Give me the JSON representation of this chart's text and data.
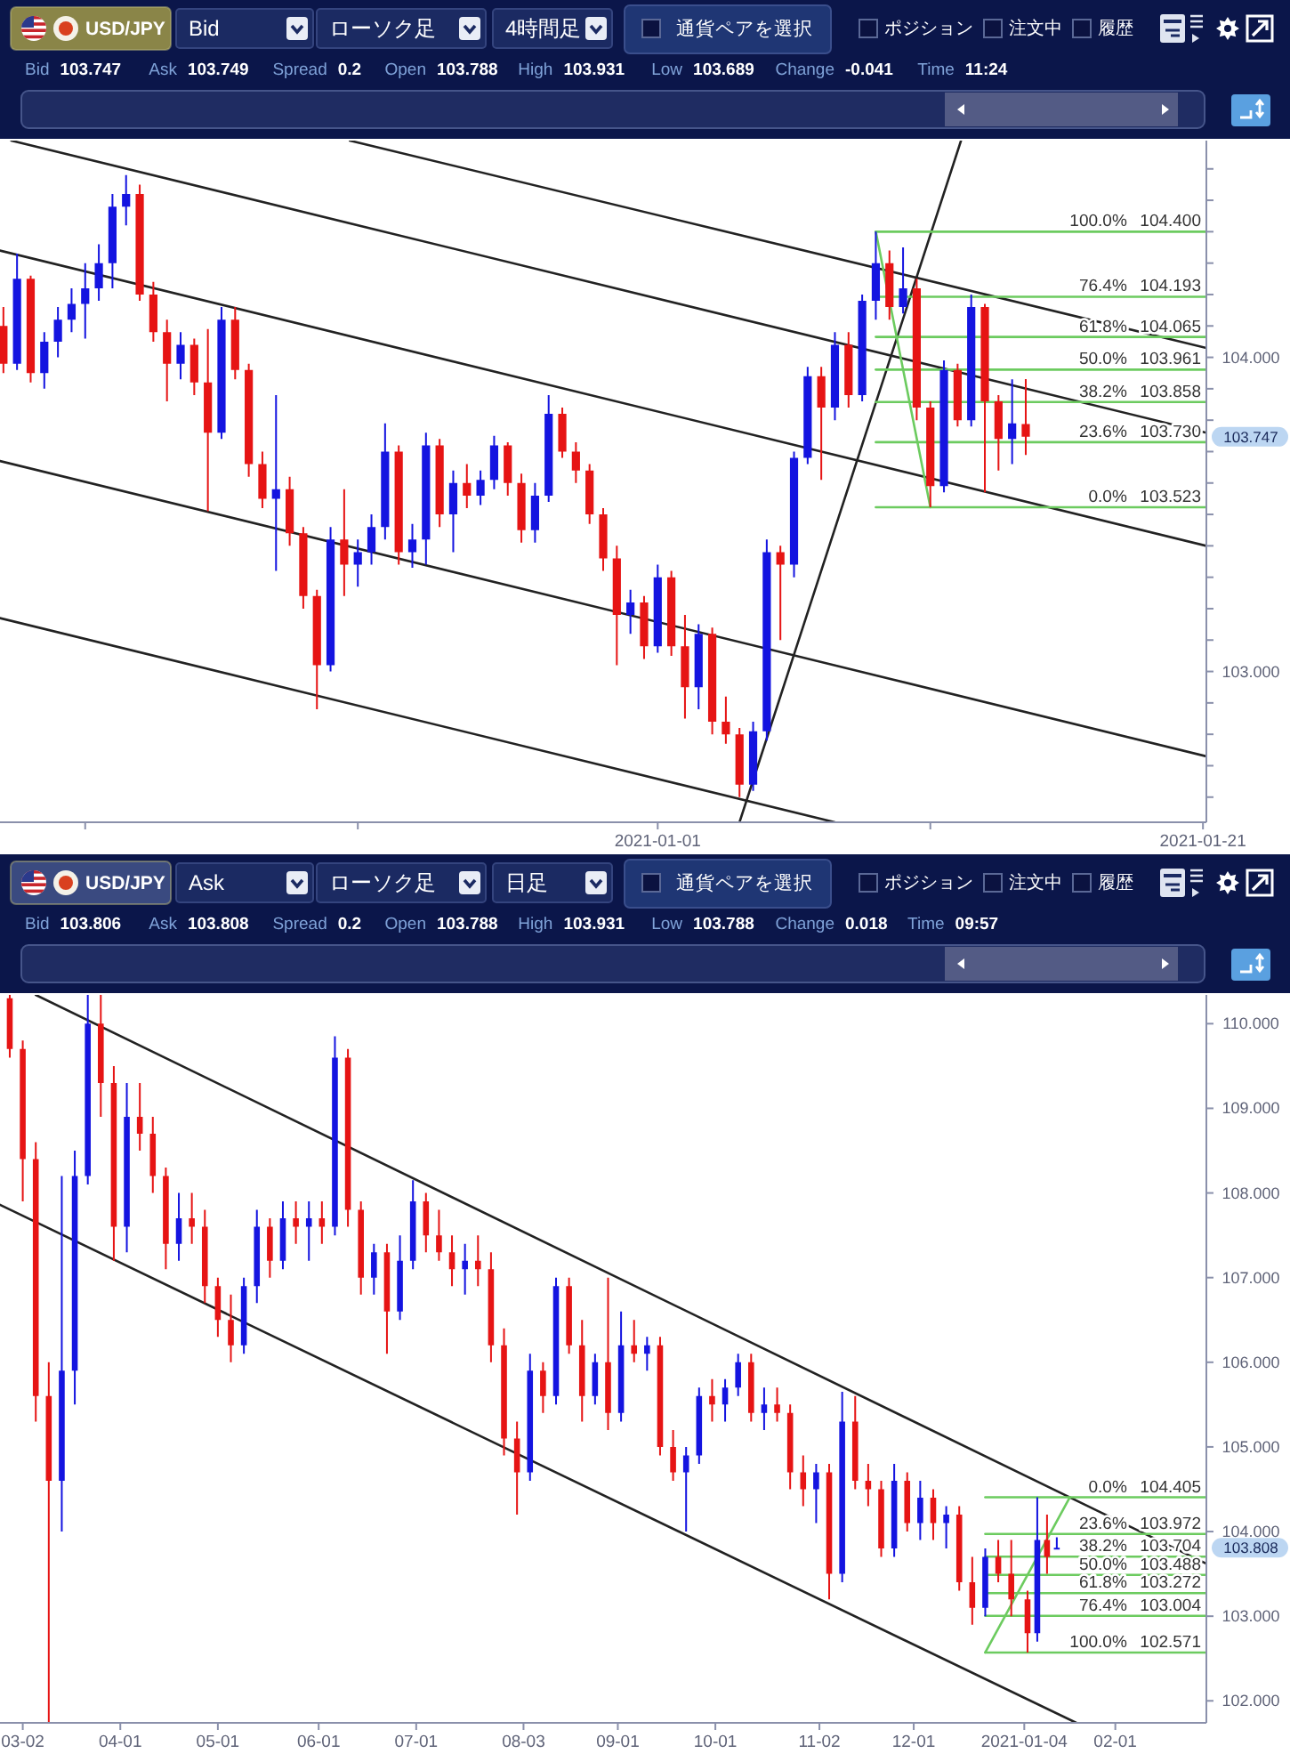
{
  "chart_data": [
    {
      "type": "candlestick",
      "title": "USD/JPY",
      "annotations": [
        "Bid",
        "ローソク足",
        "4時間足",
        "通貨ペアを選択",
        "ポジション",
        "注文中",
        "履歴",
        "Bid 103.747",
        "Ask 103.749",
        "Spread 0.2",
        "Open 103.788",
        "High 103.931",
        "Low 103.689",
        "Change -0.041",
        "Time 11:24",
        "103.747"
      ],
      "xlim": [
        "2020-12-07T21:00",
        "2021-01-21T03:00"
      ],
      "xticks": [
        {
          "value": "2020-12-11",
          "label": null
        },
        {
          "value": "2020-12-21",
          "label": null
        },
        "2021-01-01",
        {
          "value": "2021-01-11",
          "label": null
        },
        "2021-01-21"
      ],
      "ylim": [
        102.52,
        104.69
      ],
      "yticks": [
        {
          "value": 102.6,
          "label": null
        },
        {
          "value": 102.7,
          "label": null
        },
        {
          "value": 102.8,
          "label": null
        },
        {
          "value": 102.9,
          "label": null
        },
        {
          "value": 103,
          "label": "103.000"
        },
        {
          "value": 103.1,
          "label": null
        },
        {
          "value": 103.2,
          "label": null
        },
        {
          "value": 103.3,
          "label": null
        },
        {
          "value": 103.4,
          "label": null
        },
        {
          "value": 103.5,
          "label": null
        },
        {
          "value": 103.6,
          "label": null
        },
        {
          "value": 103.7,
          "label": null
        },
        {
          "value": 103.8,
          "label": null
        },
        {
          "value": 103.9,
          "label": null
        },
        {
          "value": 104,
          "label": "104.000"
        },
        {
          "value": 104.1,
          "label": null
        },
        {
          "value": 104.2,
          "label": null
        },
        {
          "value": 104.3,
          "label": null
        },
        {
          "value": 104.4,
          "label": null
        },
        {
          "value": 104.5,
          "label": null
        },
        {
          "value": 104.6,
          "label": null
        }
      ],
      "series": [
        {
          "x": [
            "2020-12-08T00:00",
            "2020-12-08T12:00",
            "2020-12-09T00:00",
            "2020-12-09T12:00",
            "2020-12-10T00:00",
            "2020-12-10T12:00",
            "2020-12-11T00:00",
            "2020-12-11T12:00",
            "2020-12-12T00:00",
            "2020-12-12T12:00",
            "2020-12-13T00:00",
            "2020-12-13T12:00",
            "2020-12-14T00:00",
            "2020-12-14T12:00",
            "2020-12-15T00:00",
            "2020-12-15T12:00",
            "2020-12-16T00:00",
            "2020-12-16T12:00",
            "2020-12-17T00:00",
            "2020-12-17T12:00",
            "2020-12-18T00:00",
            "2020-12-18T12:00",
            "2020-12-19T00:00",
            "2020-12-19T12:00",
            "2020-12-20T00:00",
            "2020-12-20T12:00",
            "2020-12-21T00:00",
            "2020-12-21T12:00",
            "2020-12-22T00:00",
            "2020-12-22T12:00",
            "2020-12-23T00:00",
            "2020-12-23T12:00",
            "2020-12-24T00:00",
            "2020-12-24T12:00",
            "2020-12-25T00:00",
            "2020-12-25T12:00",
            "2020-12-26T00:00",
            "2020-12-26T12:00",
            "2020-12-27T00:00",
            "2020-12-27T12:00",
            "2020-12-28T00:00",
            "2020-12-28T12:00",
            "2020-12-29T00:00",
            "2020-12-29T12:00",
            "2020-12-30T00:00",
            "2020-12-30T12:00",
            "2020-12-31T00:00",
            "2020-12-31T12:00",
            "2021-01-01T00:00",
            "2021-01-01T12:00",
            "2021-01-02T00:00",
            "2021-01-02T12:00",
            "2021-01-03T00:00",
            "2021-01-03T12:00",
            "2021-01-04T00:00",
            "2021-01-04T12:00",
            "2021-01-05T00:00",
            "2021-01-05T12:00",
            "2021-01-06T00:00",
            "2021-01-06T12:00",
            "2021-01-07T00:00",
            "2021-01-07T12:00",
            "2021-01-08T00:00",
            "2021-01-08T12:00",
            "2021-01-09T00:00",
            "2021-01-09T12:00",
            "2021-01-10T00:00",
            "2021-01-10T12:00",
            "2021-01-11T00:00",
            "2021-01-11T12:00",
            "2021-01-12T00:00",
            "2021-01-12T12:00",
            "2021-01-13T00:00",
            "2021-01-13T12:00",
            "2021-01-14T00:00",
            "2021-01-14T12:00"
          ],
          "ohlc": [
            [
              104.1,
              104.16,
              103.95,
              103.98
            ],
            [
              103.98,
              104.33,
              103.96,
              104.25
            ],
            [
              104.25,
              104.26,
              103.92,
              103.95
            ],
            [
              103.95,
              104.08,
              103.9,
              104.05
            ],
            [
              104.05,
              104.16,
              104.0,
              104.12
            ],
            [
              104.12,
              104.22,
              104.08,
              104.17
            ],
            [
              104.17,
              104.3,
              104.06,
              104.22
            ],
            [
              104.22,
              104.36,
              104.18,
              104.3
            ],
            [
              104.3,
              104.52,
              104.22,
              104.48
            ],
            [
              104.48,
              104.58,
              104.42,
              104.52
            ],
            [
              104.52,
              104.55,
              104.18,
              104.2
            ],
            [
              104.2,
              104.24,
              104.05,
              104.08
            ],
            [
              104.08,
              104.12,
              103.86,
              103.98
            ],
            [
              103.98,
              104.08,
              103.93,
              104.04
            ],
            [
              104.04,
              104.06,
              103.88,
              103.92
            ],
            [
              103.92,
              104.09,
              103.51,
              103.76
            ],
            [
              103.76,
              104.16,
              103.74,
              104.12
            ],
            [
              104.12,
              104.16,
              103.93,
              103.96
            ],
            [
              103.96,
              103.98,
              103.62,
              103.66
            ],
            [
              103.66,
              103.7,
              103.52,
              103.55
            ],
            [
              103.55,
              103.88,
              103.32,
              103.58
            ],
            [
              103.58,
              103.62,
              103.4,
              103.44
            ],
            [
              103.44,
              103.46,
              103.2,
              103.24
            ],
            [
              103.24,
              103.26,
              102.88,
              103.02
            ],
            [
              103.02,
              103.46,
              103.0,
              103.42
            ],
            [
              103.42,
              103.58,
              103.24,
              103.34
            ],
            [
              103.34,
              103.42,
              103.27,
              103.38
            ],
            [
              103.38,
              103.5,
              103.34,
              103.46
            ],
            [
              103.46,
              103.79,
              103.42,
              103.7
            ],
            [
              103.7,
              103.72,
              103.34,
              103.38
            ],
            [
              103.38,
              103.47,
              103.33,
              103.42
            ],
            [
              103.42,
              103.76,
              103.34,
              103.72
            ],
            [
              103.72,
              103.74,
              103.46,
              103.5
            ],
            [
              103.5,
              103.64,
              103.38,
              103.6
            ],
            [
              103.6,
              103.66,
              103.52,
              103.56
            ],
            [
              103.56,
              103.64,
              103.53,
              103.61
            ],
            [
              103.61,
              103.75,
              103.58,
              103.72
            ],
            [
              103.72,
              103.73,
              103.56,
              103.6
            ],
            [
              103.6,
              103.63,
              103.41,
              103.45
            ],
            [
              103.45,
              103.6,
              103.41,
              103.56
            ],
            [
              103.56,
              103.88,
              103.54,
              103.82
            ],
            [
              103.82,
              103.84,
              103.68,
              103.7
            ],
            [
              103.7,
              103.73,
              103.6,
              103.64
            ],
            [
              103.64,
              103.66,
              103.47,
              103.5
            ],
            [
              103.5,
              103.52,
              103.32,
              103.36
            ],
            [
              103.36,
              103.4,
              103.02,
              103.18
            ],
            [
              103.18,
              103.26,
              103.12,
              103.22
            ],
            [
              103.22,
              103.24,
              103.04,
              103.08
            ],
            [
              103.08,
              103.34,
              103.06,
              103.3
            ],
            [
              103.3,
              103.32,
              103.05,
              103.08
            ],
            [
              103.08,
              103.18,
              102.85,
              102.95
            ],
            [
              102.95,
              103.15,
              102.88,
              103.12
            ],
            [
              103.12,
              103.14,
              102.8,
              102.84
            ],
            [
              102.84,
              102.92,
              102.77,
              102.8
            ],
            [
              102.8,
              102.82,
              102.6,
              102.64
            ],
            [
              102.64,
              102.84,
              102.62,
              102.81
            ],
            [
              102.81,
              103.42,
              102.78,
              103.38
            ],
            [
              103.38,
              103.4,
              103.1,
              103.34
            ],
            [
              103.34,
              103.7,
              103.3,
              103.68
            ],
            [
              103.68,
              103.97,
              103.66,
              103.94
            ],
            [
              103.94,
              103.97,
              103.61,
              103.84
            ],
            [
              103.84,
              104.08,
              103.8,
              104.04
            ],
            [
              104.04,
              104.08,
              103.84,
              103.88
            ],
            [
              103.88,
              104.2,
              103.86,
              104.18
            ],
            [
              104.18,
              104.4,
              104.12,
              104.3
            ],
            [
              104.3,
              104.34,
              104.12,
              104.16
            ],
            [
              104.16,
              104.35,
              104.14,
              104.22
            ],
            [
              104.22,
              104.25,
              103.8,
              103.84
            ],
            [
              103.84,
              103.86,
              103.523,
              103.59
            ],
            [
              103.59,
              103.99,
              103.57,
              103.96
            ],
            [
              103.96,
              103.98,
              103.78,
              103.8
            ],
            [
              103.8,
              104.2,
              103.78,
              104.16
            ],
            [
              104.16,
              104.17,
              103.57,
              103.86
            ],
            [
              103.86,
              103.88,
              103.64,
              103.74
            ],
            [
              103.74,
              103.93,
              103.66,
              103.79
            ],
            [
              103.788,
              103.931,
              103.689,
              103.747
            ]
          ],
          "colors": [
            "#e61414",
            "#1414e0",
            "#e61414",
            "#1414e0",
            "#1414e0",
            "#1414e0",
            "#1414e0",
            "#1414e0",
            "#1414e0",
            "#1414e0",
            "#e61414",
            "#e61414",
            "#e61414",
            "#1414e0",
            "#e61414",
            "#e61414",
            "#1414e0",
            "#e61414",
            "#e61414",
            "#e61414",
            "#1414e0",
            "#e61414",
            "#e61414",
            "#e61414",
            "#1414e0",
            "#e61414",
            "#1414e0",
            "#1414e0",
            "#1414e0",
            "#e61414",
            "#1414e0",
            "#1414e0",
            "#e61414",
            "#1414e0",
            "#e61414",
            "#1414e0",
            "#1414e0",
            "#e61414",
            "#e61414",
            "#1414e0",
            "#1414e0",
            "#e61414",
            "#e61414",
            "#e61414",
            "#e61414",
            "#e61414",
            "#1414e0",
            "#e61414",
            "#1414e0",
            "#e61414",
            "#e61414",
            "#1414e0",
            "#e61414",
            "#e61414",
            "#e61414",
            "#1414e0",
            "#1414e0",
            "#e61414",
            "#1414e0",
            "#1414e0",
            "#e61414",
            "#1414e0",
            "#e61414",
            "#1414e0",
            "#1414e0",
            "#e61414",
            "#1414e0",
            "#e61414",
            "#e61414",
            "#1414e0",
            "#e61414",
            "#1414e0",
            "#e61414",
            "#e61414",
            "#1414e0",
            "#e61414"
          ]
        },
        {
          "type": "line",
          "x": [
            "2020-12-20T17:00",
            "2021-01-21T03:00"
          ],
          "values": [
            104.69,
            104.03
          ],
          "color": "#222222"
        },
        {
          "type": "line",
          "x": [
            "2020-12-08T07:00",
            "2021-01-21T03:00"
          ],
          "values": [
            104.69,
            103.76
          ],
          "color": "#222222"
        },
        {
          "type": "line",
          "x": [
            "2020-12-07T21:00",
            "2021-01-21T03:00"
          ],
          "values": [
            104.34,
            103.4
          ],
          "color": "#222222"
        },
        {
          "type": "line",
          "x": [
            "2020-12-07T21:00",
            "2021-01-21T03:00"
          ],
          "values": [
            103.67,
            102.73
          ],
          "color": "#222222"
        },
        {
          "type": "line",
          "x": [
            "2020-12-07T21:00",
            "2021-01-07T12:00"
          ],
          "values": [
            103.17,
            102.52
          ],
          "color": "#222222"
        },
        {
          "type": "line",
          "x": [
            "2021-01-04T00:00",
            "2021-01-12T03:00"
          ],
          "values": [
            102.52,
            104.69
          ],
          "color": "#222222"
        },
        {
          "type": "line",
          "x": [
            "2021-01-09T00:00",
            "2021-01-11T00:00"
          ],
          "values": [
            104.4,
            103.523
          ],
          "color": "#6ccb5f"
        },
        {
          "type": "line",
          "name": "100.0%",
          "x": [
            "2021-01-09T00:00",
            "2021-01-21T03:00"
          ],
          "values": [
            104.4,
            104.4
          ],
          "value_labels": [
            null,
            "104.400"
          ],
          "color": "#6ccb5f"
        },
        {
          "type": "line",
          "name": "76.4%",
          "x": [
            "2021-01-09T00:00",
            "2021-01-21T03:00"
          ],
          "values": [
            104.193,
            104.193
          ],
          "value_labels": [
            null,
            "104.193"
          ],
          "color": "#6ccb5f"
        },
        {
          "type": "line",
          "name": "61.8%",
          "x": [
            "2021-01-09T00:00",
            "2021-01-21T03:00"
          ],
          "values": [
            104.065,
            104.065
          ],
          "value_labels": [
            null,
            "104.065"
          ],
          "color": "#6ccb5f"
        },
        {
          "type": "line",
          "name": "50.0%",
          "x": [
            "2021-01-09T00:00",
            "2021-01-21T03:00"
          ],
          "values": [
            103.961,
            103.961
          ],
          "value_labels": [
            null,
            "103.961"
          ],
          "color": "#6ccb5f"
        },
        {
          "type": "line",
          "name": "38.2%",
          "x": [
            "2021-01-09T00:00",
            "2021-01-21T03:00"
          ],
          "values": [
            103.858,
            103.858
          ],
          "value_labels": [
            null,
            "103.858"
          ],
          "color": "#6ccb5f"
        },
        {
          "type": "line",
          "name": "23.6%",
          "x": [
            "2021-01-09T00:00",
            "2021-01-21T03:00"
          ],
          "values": [
            103.73,
            103.73
          ],
          "value_labels": [
            null,
            "103.730"
          ],
          "color": "#6ccb5f"
        },
        {
          "type": "line",
          "name": "0.0%",
          "x": [
            "2021-01-09T00:00",
            "2021-01-21T03:00"
          ],
          "values": [
            103.523,
            103.523
          ],
          "value_labels": [
            null,
            "103.523"
          ],
          "color": "#6ccb5f"
        }
      ]
    },
    {
      "type": "candlestick",
      "title": "USD/JPY",
      "annotations": [
        "Ask",
        "ローソク足",
        "日足",
        "通貨ペアを選択",
        "ポジション",
        "注文中",
        "履歴",
        "Bid 103.806",
        "Ask 103.808",
        "Spread 0.2",
        "Open 103.788",
        "High 103.931",
        "Low 103.788",
        "Change 0.018",
        "Time 09:57",
        "103.808"
      ],
      "xlim": [
        "2020-02-24",
        "2021-03-01"
      ],
      "xticks": [
        {
          "value": "2020-03-02",
          "label": "03-02"
        },
        {
          "value": "2020-04-01",
          "label": "04-01"
        },
        {
          "value": "2020-05-01",
          "label": "05-01"
        },
        {
          "value": "2020-06-01",
          "label": "06-01"
        },
        {
          "value": "2020-07-01",
          "label": "07-01"
        },
        {
          "value": "2020-08-03",
          "label": "08-03"
        },
        {
          "value": "2020-09-01",
          "label": "09-01"
        },
        {
          "value": "2020-10-01",
          "label": "10-01"
        },
        {
          "value": "2020-11-02",
          "label": "11-02"
        },
        {
          "value": "2020-12-01",
          "label": "12-01"
        },
        "2021-01-04",
        {
          "value": "2021-02-01",
          "label": "02-01"
        }
      ],
      "ylim": [
        101.74,
        110.34
      ],
      "yticks": [
        {
          "value": 102,
          "label": "102.000"
        },
        {
          "value": 103,
          "label": "103.000"
        },
        {
          "value": 104,
          "label": "104.000"
        },
        {
          "value": 105,
          "label": "105.000"
        },
        {
          "value": 106,
          "label": "106.000"
        },
        {
          "value": 107,
          "label": "107.000"
        },
        {
          "value": 108,
          "label": "108.000"
        },
        {
          "value": 109,
          "label": "109.000"
        },
        {
          "value": 110,
          "label": "110.000"
        }
      ],
      "series": [
        {
          "x": [
            "2020-02-27",
            "2020-03-02",
            "2020-03-06",
            "2020-03-10",
            "2020-03-14",
            "2020-03-18",
            "2020-03-22",
            "2020-03-26",
            "2020-03-30",
            "2020-04-03",
            "2020-04-07",
            "2020-04-11",
            "2020-04-15",
            "2020-04-19",
            "2020-04-23",
            "2020-04-27",
            "2020-05-01",
            "2020-05-05",
            "2020-05-09",
            "2020-05-13",
            "2020-05-17",
            "2020-05-21",
            "2020-05-25",
            "2020-05-29",
            "2020-06-02",
            "2020-06-06",
            "2020-06-10",
            "2020-06-14",
            "2020-06-18",
            "2020-06-22",
            "2020-06-26",
            "2020-06-30",
            "2020-07-04",
            "2020-07-08",
            "2020-07-12",
            "2020-07-16",
            "2020-07-20",
            "2020-07-24",
            "2020-07-28",
            "2020-08-01",
            "2020-08-05",
            "2020-08-09",
            "2020-08-13",
            "2020-08-17",
            "2020-08-21",
            "2020-08-25",
            "2020-08-29",
            "2020-09-02",
            "2020-09-06",
            "2020-09-10",
            "2020-09-14",
            "2020-09-18",
            "2020-09-22",
            "2020-09-26",
            "2020-09-30",
            "2020-10-04",
            "2020-10-08",
            "2020-10-12",
            "2020-10-16",
            "2020-10-20",
            "2020-10-24",
            "2020-10-28",
            "2020-11-01",
            "2020-11-05",
            "2020-11-09",
            "2020-11-13",
            "2020-11-17",
            "2020-11-21",
            "2020-11-25",
            "2020-11-29",
            "2020-12-03",
            "2020-12-07",
            "2020-12-11",
            "2020-12-15",
            "2020-12-19",
            "2020-12-23",
            "2020-12-27",
            "2020-12-31",
            "2021-01-05",
            "2021-01-08",
            "2021-01-11",
            "2021-01-14"
          ],
          "ohlc": [
            [
              110.3,
              110.34,
              109.6,
              109.7
            ],
            [
              109.7,
              109.8,
              107.9,
              108.4
            ],
            [
              108.4,
              108.6,
              105.3,
              105.6
            ],
            [
              105.6,
              106.0,
              101.75,
              104.6
            ],
            [
              104.6,
              108.2,
              104.0,
              105.9
            ],
            [
              105.9,
              108.5,
              105.5,
              108.2
            ],
            [
              108.2,
              110.34,
              108.1,
              110.0
            ],
            [
              110.0,
              110.34,
              108.9,
              109.3
            ],
            [
              109.3,
              109.5,
              107.2,
              107.6
            ],
            [
              107.6,
              109.3,
              107.3,
              108.9
            ],
            [
              108.9,
              109.3,
              108.5,
              108.7
            ],
            [
              108.7,
              108.9,
              108.0,
              108.2
            ],
            [
              108.2,
              108.3,
              107.1,
              107.4
            ],
            [
              107.4,
              108.0,
              107.2,
              107.7
            ],
            [
              107.7,
              108.0,
              107.4,
              107.6
            ],
            [
              107.6,
              107.8,
              106.7,
              106.9
            ],
            [
              106.9,
              107.0,
              106.3,
              106.5
            ],
            [
              106.5,
              106.8,
              106.0,
              106.2
            ],
            [
              106.2,
              107.0,
              106.1,
              106.9
            ],
            [
              106.9,
              107.8,
              106.7,
              107.6
            ],
            [
              107.6,
              107.7,
              107.0,
              107.2
            ],
            [
              107.2,
              107.9,
              107.1,
              107.7
            ],
            [
              107.7,
              107.9,
              107.4,
              107.6
            ],
            [
              107.6,
              107.9,
              107.2,
              107.7
            ],
            [
              107.7,
              107.9,
              107.4,
              107.6
            ],
            [
              107.6,
              109.85,
              107.5,
              109.6
            ],
            [
              109.6,
              109.7,
              107.6,
              107.8
            ],
            [
              107.8,
              107.9,
              106.8,
              107.0
            ],
            [
              107.0,
              107.4,
              106.8,
              107.3
            ],
            [
              107.3,
              107.4,
              106.1,
              106.6
            ],
            [
              106.6,
              107.5,
              106.5,
              107.2
            ],
            [
              107.2,
              108.15,
              107.1,
              107.9
            ],
            [
              107.9,
              108.0,
              107.3,
              107.5
            ],
            [
              107.5,
              107.8,
              107.2,
              107.3
            ],
            [
              107.3,
              107.5,
              106.9,
              107.1
            ],
            [
              107.1,
              107.4,
              106.8,
              107.2
            ],
            [
              107.2,
              107.5,
              106.9,
              107.1
            ],
            [
              107.1,
              107.3,
              106.0,
              106.2
            ],
            [
              106.2,
              106.4,
              104.9,
              105.1
            ],
            [
              105.1,
              105.3,
              104.2,
              104.7
            ],
            [
              104.7,
              106.1,
              104.6,
              105.9
            ],
            [
              105.9,
              106.0,
              105.4,
              105.6
            ],
            [
              105.6,
              107.0,
              105.5,
              106.9
            ],
            [
              106.9,
              107.0,
              106.1,
              106.2
            ],
            [
              106.2,
              106.5,
              105.3,
              105.6
            ],
            [
              105.6,
              106.1,
              105.5,
              106.0
            ],
            [
              106.0,
              107.0,
              105.2,
              105.4
            ],
            [
              105.4,
              106.6,
              105.3,
              106.2
            ],
            [
              106.2,
              106.5,
              106.0,
              106.1
            ],
            [
              106.1,
              106.3,
              105.9,
              106.2
            ],
            [
              106.2,
              106.3,
              104.9,
              105.0
            ],
            [
              105.0,
              105.2,
              104.6,
              104.7
            ],
            [
              104.7,
              105.0,
              104.0,
              104.9
            ],
            [
              104.9,
              105.7,
              104.8,
              105.6
            ],
            [
              105.6,
              105.8,
              105.3,
              105.5
            ],
            [
              105.5,
              105.8,
              105.3,
              105.7
            ],
            [
              105.7,
              106.1,
              105.6,
              106.0
            ],
            [
              106.0,
              106.1,
              105.3,
              105.4
            ],
            [
              105.4,
              105.7,
              105.2,
              105.5
            ],
            [
              105.5,
              105.7,
              105.3,
              105.4
            ],
            [
              105.4,
              105.5,
              104.5,
              104.7
            ],
            [
              104.7,
              104.9,
              104.3,
              104.5
            ],
            [
              104.5,
              104.8,
              104.1,
              104.7
            ],
            [
              104.7,
              104.8,
              103.2,
              103.5
            ],
            [
              103.5,
              105.65,
              103.4,
              105.3
            ],
            [
              105.3,
              105.6,
              104.5,
              104.6
            ],
            [
              104.6,
              104.8,
              104.3,
              104.5
            ],
            [
              104.5,
              104.6,
              103.7,
              103.8
            ],
            [
              103.8,
              104.8,
              103.7,
              104.6
            ],
            [
              104.6,
              104.7,
              104.0,
              104.1
            ],
            [
              104.1,
              104.6,
              103.9,
              104.4
            ],
            [
              104.4,
              104.5,
              103.9,
              104.1
            ],
            [
              104.1,
              104.3,
              103.8,
              104.2
            ],
            [
              104.2,
              104.3,
              103.3,
              103.4
            ],
            [
              103.4,
              103.7,
              102.9,
              103.1
            ],
            [
              103.1,
              103.8,
              103.0,
              103.7
            ],
            [
              103.7,
              103.9,
              103.4,
              103.5
            ],
            [
              103.5,
              103.9,
              103.0,
              103.2
            ],
            [
              103.2,
              103.3,
              102.571,
              102.8
            ],
            [
              102.8,
              104.405,
              102.7,
              103.9
            ],
            [
              103.9,
              104.2,
              103.5,
              103.7
            ],
            [
              103.788,
              103.931,
              103.788,
              103.808
            ]
          ],
          "colors": [
            "#e61414",
            "#e61414",
            "#e61414",
            "#e61414",
            "#1414e0",
            "#1414e0",
            "#1414e0",
            "#e61414",
            "#e61414",
            "#1414e0",
            "#e61414",
            "#e61414",
            "#e61414",
            "#1414e0",
            "#e61414",
            "#e61414",
            "#e61414",
            "#e61414",
            "#1414e0",
            "#1414e0",
            "#e61414",
            "#1414e0",
            "#e61414",
            "#1414e0",
            "#e61414",
            "#1414e0",
            "#e61414",
            "#e61414",
            "#1414e0",
            "#e61414",
            "#1414e0",
            "#1414e0",
            "#e61414",
            "#e61414",
            "#e61414",
            "#1414e0",
            "#e61414",
            "#e61414",
            "#e61414",
            "#e61414",
            "#1414e0",
            "#e61414",
            "#1414e0",
            "#e61414",
            "#e61414",
            "#1414e0",
            "#e61414",
            "#1414e0",
            "#e61414",
            "#1414e0",
            "#e61414",
            "#e61414",
            "#1414e0",
            "#1414e0",
            "#e61414",
            "#1414e0",
            "#1414e0",
            "#e61414",
            "#1414e0",
            "#e61414",
            "#e61414",
            "#e61414",
            "#1414e0",
            "#e61414",
            "#1414e0",
            "#e61414",
            "#e61414",
            "#e61414",
            "#1414e0",
            "#e61414",
            "#1414e0",
            "#e61414",
            "#1414e0",
            "#e61414",
            "#e61414",
            "#1414e0",
            "#e61414",
            "#e61414",
            "#e61414",
            "#1414e0",
            "#e61414",
            "#1414e0"
          ]
        },
        {
          "type": "line",
          "x": [
            "2020-03-06",
            "2021-03-01"
          ],
          "values": [
            110.34,
            103.62
          ],
          "color": "#222222"
        },
        {
          "type": "line",
          "x": [
            "2020-02-24",
            "2021-01-20"
          ],
          "values": [
            107.86,
            101.74
          ],
          "color": "#222222"
        },
        {
          "type": "line",
          "x": [
            "2020-12-23",
            "2021-01-18"
          ],
          "values": [
            102.571,
            104.405
          ],
          "color": "#6ccb5f"
        },
        {
          "type": "line",
          "name": "0.0%",
          "x": [
            "2020-12-23",
            "2021-03-01"
          ],
          "values": [
            104.405,
            104.405
          ],
          "value_labels": [
            null,
            "104.405"
          ],
          "color": "#6ccb5f"
        },
        {
          "type": "line",
          "name": "23.6%",
          "x": [
            "2020-12-23",
            "2021-03-01"
          ],
          "values": [
            103.972,
            103.972
          ],
          "value_labels": [
            null,
            "103.972"
          ],
          "color": "#6ccb5f"
        },
        {
          "type": "line",
          "name": "38.2%",
          "x": [
            "2020-12-23",
            "2021-03-01"
          ],
          "values": [
            103.704,
            103.704
          ],
          "value_labels": [
            null,
            "103.704"
          ],
          "color": "#6ccb5f"
        },
        {
          "type": "line",
          "name": "50.0%",
          "x": [
            "2020-12-23",
            "2021-03-01"
          ],
          "values": [
            103.488,
            103.488
          ],
          "value_labels": [
            null,
            "103.488"
          ],
          "color": "#6ccb5f"
        },
        {
          "type": "line",
          "name": "61.8%",
          "x": [
            "2020-12-23",
            "2021-03-01"
          ],
          "values": [
            103.272,
            103.272
          ],
          "value_labels": [
            null,
            "103.272"
          ],
          "color": "#6ccb5f"
        },
        {
          "type": "line",
          "name": "76.4%",
          "x": [
            "2020-12-23",
            "2021-03-01"
          ],
          "values": [
            103.004,
            103.004
          ],
          "value_labels": [
            null,
            "103.004"
          ],
          "color": "#6ccb5f"
        },
        {
          "type": "line",
          "name": "100.0%",
          "x": [
            "2020-12-23",
            "2021-03-01"
          ],
          "values": [
            102.571,
            102.571
          ],
          "value_labels": [
            null,
            "102.571"
          ],
          "color": "#6ccb5f"
        }
      ]
    }
  ]
}
